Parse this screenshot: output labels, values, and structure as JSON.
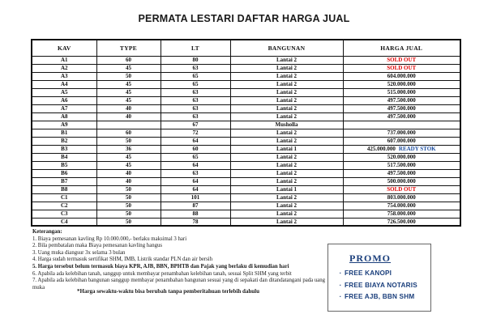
{
  "title": "PERMATA LESTARI DAFTAR HARGA JUAL",
  "table": {
    "headers": [
      "KAV",
      "TYPE",
      "LT",
      "BANGUNAN",
      "HARGA JUAL"
    ],
    "rows": [
      {
        "kav": "A1",
        "type": "60",
        "lt": "80",
        "bangunan": "Lantai 2",
        "harga": "SOLD OUT",
        "style": "sold-out"
      },
      {
        "kav": "A2",
        "type": "45",
        "lt": "63",
        "bangunan": "Lantai 2",
        "harga": "SOLD OUT",
        "style": "sold-out"
      },
      {
        "kav": "A3",
        "type": "50",
        "lt": "65",
        "bangunan": "Lantai 2",
        "harga": "604.000.000"
      },
      {
        "kav": "A4",
        "type": "45",
        "lt": "65",
        "bangunan": "Lantai 2",
        "harga": "520.000.000"
      },
      {
        "kav": "A5",
        "type": "45",
        "lt": "63",
        "bangunan": "Lantai 2",
        "harga": "515.000.000"
      },
      {
        "kav": "A6",
        "type": "45",
        "lt": "63",
        "bangunan": "Lantai 2",
        "harga": "497.500.000"
      },
      {
        "kav": "A7",
        "type": "40",
        "lt": "63",
        "bangunan": "Lantai 2",
        "harga": "497.500.000"
      },
      {
        "kav": "A8",
        "type": "40",
        "lt": "63",
        "bangunan": "Lantai 2",
        "harga": "497.500.000"
      },
      {
        "kav": "A9",
        "type": "",
        "lt": "67",
        "bangunan": "Musholla",
        "harga": ""
      },
      {
        "kav": "B1",
        "type": "60",
        "lt": "72",
        "bangunan": "Lantai 2",
        "harga": "737.000.000"
      },
      {
        "kav": "B2",
        "type": "50",
        "lt": "64",
        "bangunan": "Lantai 2",
        "harga": "607.000.000"
      },
      {
        "kav": "B3",
        "type": "36",
        "lt": "60",
        "bangunan": "Lantai 1",
        "harga": "425.000.000",
        "badge": "READY STOK"
      },
      {
        "kav": "B4",
        "type": "45",
        "lt": "65",
        "bangunan": "Lantai 2",
        "harga": "520.000.000"
      },
      {
        "kav": "B5",
        "type": "45",
        "lt": "64",
        "bangunan": "Lantai 2",
        "harga": "517.500.000"
      },
      {
        "kav": "B6",
        "type": "40",
        "lt": "63",
        "bangunan": "Lantai 2",
        "harga": "497.500.000"
      },
      {
        "kav": "B7",
        "type": "40",
        "lt": "64",
        "bangunan": "Lantai 2",
        "harga": "500.000.000"
      },
      {
        "kav": "B8",
        "type": "50",
        "lt": "64",
        "bangunan": "Lantai 1",
        "harga": "SOLD OUT",
        "style": "sold-out"
      },
      {
        "kav": "C1",
        "type": "50",
        "lt": "101",
        "bangunan": "Lantai 2",
        "harga": "803.000.000"
      },
      {
        "kav": "C2",
        "type": "50",
        "lt": "87",
        "bangunan": "Lantai 2",
        "harga": "754.000.000"
      },
      {
        "kav": "C3",
        "type": "50",
        "lt": "88",
        "bangunan": "Lantai 2",
        "harga": "758.000.000"
      },
      {
        "kav": "C4",
        "type": "50",
        "lt": "78",
        "bangunan": "Lantai 2",
        "harga": "726.500.000"
      }
    ]
  },
  "keterangan": {
    "heading": "Keterangan:",
    "items": [
      {
        "text": "1. Biaya pemesanan kavling Rp 10.000.000,- berlaku maksimal 3 hari",
        "bold": false
      },
      {
        "text": "2. Bila pembatalan maka Biaya pemesanan kavling hangus",
        "bold": false
      },
      {
        "text": "3. Uang muka diangsur 3x selama 3 bulan",
        "bold": false
      },
      {
        "text": "4. Harga sudah termasuk sertifikat SHM, IMB, Listrik standar PLN dan air bersih",
        "bold": false
      },
      {
        "text": "5. Harga tersebut belum termasuk biaya KPR, AJB, BBN, BPHTB dan Pajak yang berlaku di kemudian hari",
        "bold": true
      },
      {
        "text": "6. Apabila ada kelebihan tanah, sanggup untuk membayar penambahan kelebihan tanah, sesuai Split SHM yang terbit",
        "bold": false
      },
      {
        "text": "7. Apabila ada kelebihan bangunan sanggup membayar penambahan bangunan sesuai yang di sepakati dan ditandatangani pada uang muka",
        "bold": false
      }
    ],
    "footnote": "*Harga sewaktu-waktu bisa berubah tanpa pemberitahuan terlebih dahulu"
  },
  "promo": {
    "title": "PROMO",
    "bullet": "·",
    "items": [
      "FREE KANOPI",
      "FREE BIAYA NOTARIS",
      "FREE AJB, BBN SHM"
    ]
  },
  "colors": {
    "sold_out": "#e00000",
    "ready_stok": "#1f4fa0",
    "promo_text": "#1b3f7c"
  }
}
